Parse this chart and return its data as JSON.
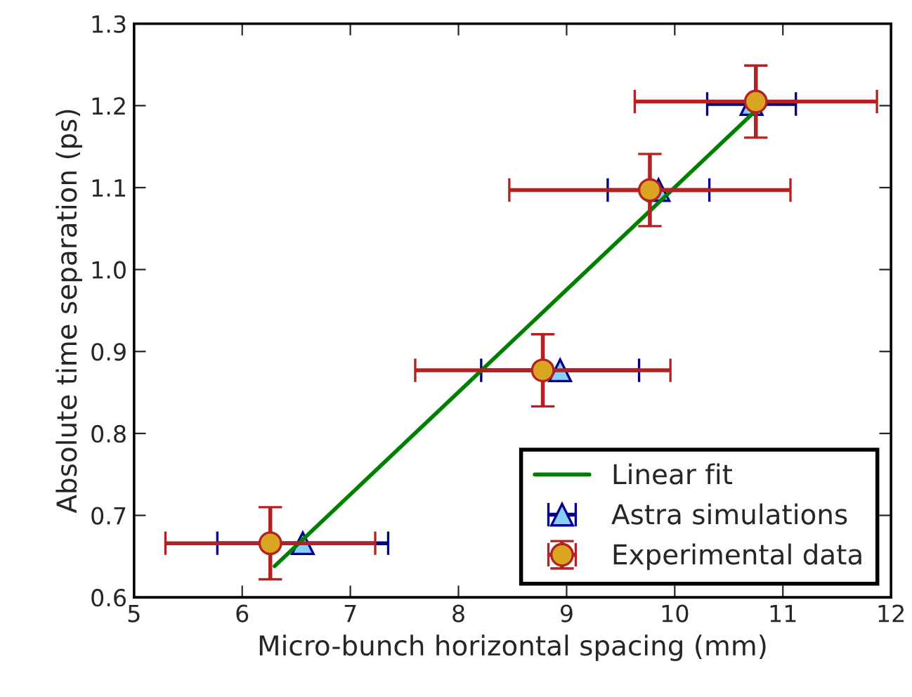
{
  "chart_data": {
    "type": "scatter",
    "xlabel": "Micro-bunch horizontal spacing (mm)",
    "ylabel": "Absolute time separation (ps)",
    "xlim": [
      5,
      12
    ],
    "ylim": [
      0.6,
      1.3
    ],
    "xticks": [
      5,
      6,
      7,
      8,
      9,
      10,
      11,
      12
    ],
    "yticks": [
      {
        "value": 0.6,
        "label": "0.6"
      },
      {
        "value": 0.7,
        "label": "0.7"
      },
      {
        "value": 0.8,
        "label": "0.8"
      },
      {
        "value": 0.9,
        "label": "0.9"
      },
      {
        "value": 1.0,
        "label": "1.0"
      },
      {
        "value": 1.1,
        "label": "1.1"
      },
      {
        "value": 1.2,
        "label": "1.2"
      },
      {
        "value": 1.3,
        "label": "1.3"
      }
    ],
    "grid": false,
    "legend": "bottom right",
    "series": [
      {
        "name": "Linear fit",
        "type": "line",
        "color": "#008000",
        "marker": "none",
        "line_style": "solid",
        "x": [
          6.3,
          10.75
        ],
        "values": [
          0.638,
          1.194
        ]
      },
      {
        "name": "Astra simulations",
        "color": "#87cefa",
        "marker": "triangle",
        "x": [
          6.56,
          8.94,
          9.85,
          10.71
        ],
        "values": [
          0.666,
          0.877,
          1.097,
          1.202
        ],
        "xerrors": [
          0.79,
          0.73,
          0.47,
          0.41
        ]
      },
      {
        "name": "Experimental data",
        "color": "#daa520",
        "marker": "circle",
        "x": [
          6.26,
          8.78,
          9.77,
          10.75
        ],
        "values": [
          0.666,
          0.877,
          1.097,
          1.205
        ],
        "xerrors": [
          0.97,
          1.18,
          1.3,
          1.12
        ],
        "errors": [
          0.044,
          0.044,
          0.044,
          0.044
        ]
      }
    ]
  }
}
